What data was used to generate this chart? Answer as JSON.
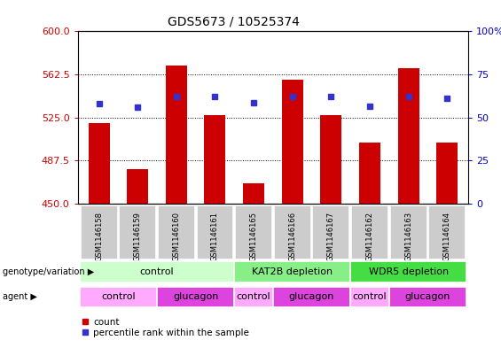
{
  "title": "GDS5673 / 10525374",
  "samples": [
    "GSM1146158",
    "GSM1146159",
    "GSM1146160",
    "GSM1146161",
    "GSM1146165",
    "GSM1146166",
    "GSM1146167",
    "GSM1146162",
    "GSM1146163",
    "GSM1146164"
  ],
  "counts": [
    520,
    480,
    570,
    527,
    468,
    558,
    527,
    503,
    568,
    503
  ],
  "percentiles": [
    537,
    534,
    543,
    543,
    538,
    543,
    543,
    535,
    543,
    542
  ],
  "ylim_left": [
    450,
    600
  ],
  "ylim_right": [
    0,
    100
  ],
  "yticks_left": [
    450,
    487.5,
    525,
    562.5,
    600
  ],
  "yticks_right": [
    0,
    25,
    50,
    75,
    100
  ],
  "bar_color": "#cc0000",
  "dot_color": "#3333cc",
  "bar_bottom": 450,
  "genotype_groups": [
    {
      "label": "control",
      "start": 0,
      "end": 4,
      "color": "#ccffcc"
    },
    {
      "label": "KAT2B depletion",
      "start": 4,
      "end": 7,
      "color": "#88ee88"
    },
    {
      "label": "WDR5 depletion",
      "start": 7,
      "end": 10,
      "color": "#44dd44"
    }
  ],
  "agent_groups": [
    {
      "label": "control",
      "start": 0,
      "end": 2,
      "color": "#ffaaff"
    },
    {
      "label": "glucagon",
      "start": 2,
      "end": 4,
      "color": "#dd44dd"
    },
    {
      "label": "control",
      "start": 4,
      "end": 5,
      "color": "#ffaaff"
    },
    {
      "label": "glucagon",
      "start": 5,
      "end": 7,
      "color": "#dd44dd"
    },
    {
      "label": "control",
      "start": 7,
      "end": 8,
      "color": "#ffaaff"
    },
    {
      "label": "glucagon",
      "start": 8,
      "end": 10,
      "color": "#dd44dd"
    }
  ],
  "legend_count_color": "#cc0000",
  "legend_percentile_color": "#3333cc",
  "left_axis_color": "#cc0000",
  "right_axis_color": "#0000cc",
  "sample_box_color": "#cccccc",
  "fig_width": 5.65,
  "fig_height": 3.93,
  "dpi": 100
}
